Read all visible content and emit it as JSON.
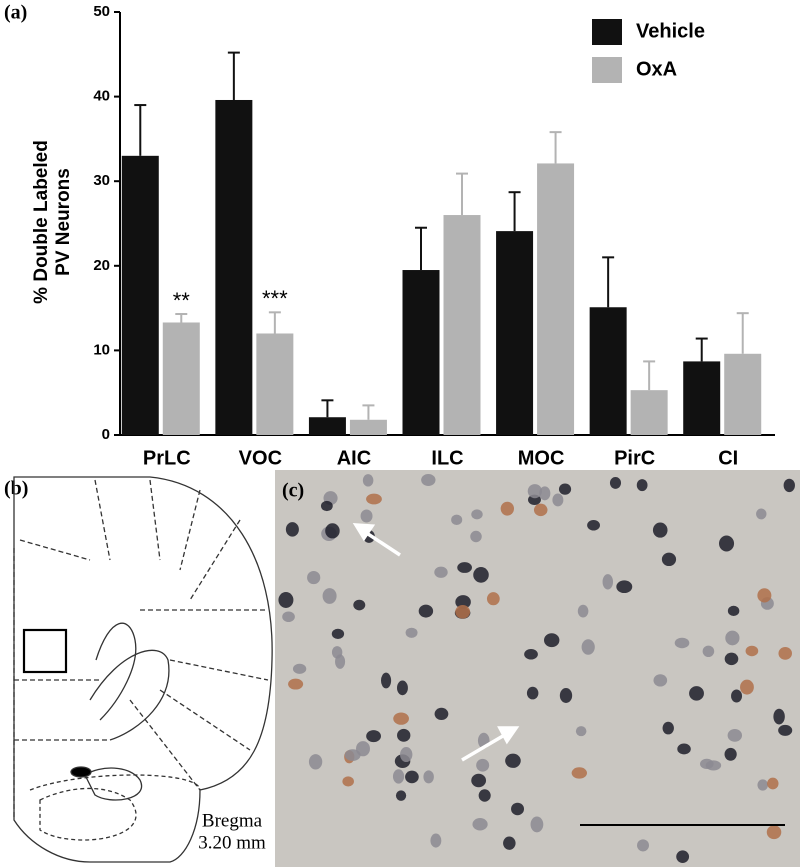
{
  "chart_data": {
    "type": "bar",
    "panel_label": "(a)",
    "ylabel": [
      "% Double Labeled",
      "PV Neurons"
    ],
    "categories": [
      "PrLC",
      "VOC",
      "AIC",
      "ILC",
      "MOC",
      "PirC",
      "CI"
    ],
    "series": [
      {
        "name": "Vehicle",
        "color": "#111111",
        "values": [
          33,
          39.6,
          2.1,
          19.5,
          24.1,
          15.1,
          8.7
        ],
        "errors": [
          6,
          5.6,
          2,
          5,
          4.6,
          5.9,
          2.7
        ]
      },
      {
        "name": "OxA",
        "color": "#b3b3b3",
        "values": [
          13.3,
          12,
          1.8,
          26,
          32.1,
          5.3,
          9.6
        ],
        "errors": [
          1,
          2.5,
          1.7,
          4.9,
          3.7,
          3.4,
          4.8
        ],
        "labels": [
          "**",
          "***",
          null,
          null,
          null,
          null,
          null
        ]
      }
    ],
    "ylim": [
      0,
      50
    ],
    "yticks": [
      0,
      10,
      20,
      30,
      40,
      50
    ],
    "grid": false
  },
  "diagram": {
    "panel_label": "(b)",
    "caption": [
      "Bregma",
      "3.20 mm"
    ]
  },
  "micrograph": {
    "panel_label": "(c)"
  }
}
